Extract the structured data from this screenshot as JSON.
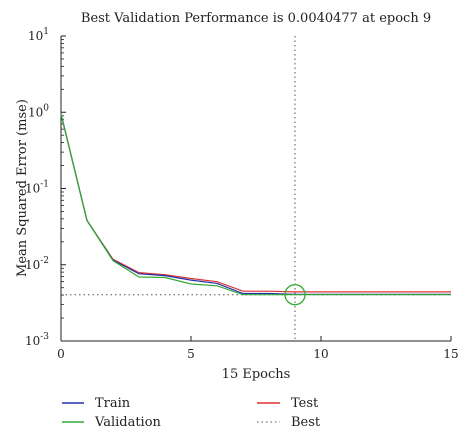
{
  "chart_data": {
    "type": "line",
    "title": "Best Validation Performance is 0.0040477 at epoch 9",
    "xlabel": "15 Epochs",
    "ylabel": "Mean Squared Error (mse)",
    "xlim": [
      0,
      15
    ],
    "ylim": [
      0.001,
      10
    ],
    "yscale": "log",
    "xticks": [
      0,
      5,
      10,
      15
    ],
    "xtick_labels": [
      "0",
      "5",
      "10",
      "15"
    ],
    "yticks": [
      0.001,
      0.01,
      0.1,
      1,
      10
    ],
    "ytick_bases": [
      "10",
      "10",
      "10",
      "10",
      "10"
    ],
    "ytick_exps": [
      "-3",
      "-2",
      "-1",
      "0",
      "1"
    ],
    "grid": false,
    "legend_position": "bottom",
    "x": [
      0,
      1,
      2,
      3,
      4,
      5,
      6,
      7,
      8,
      9,
      10,
      11,
      12,
      13,
      14,
      15
    ],
    "series": [
      {
        "name": "Train",
        "color": "#2233aa",
        "values": [
          0.95,
          0.038,
          0.0115,
          0.0076,
          0.0072,
          0.0063,
          0.0057,
          0.0042,
          0.0042,
          0.0041,
          0.0041,
          0.0041,
          0.0041,
          0.0041,
          0.0041,
          0.0041
        ]
      },
      {
        "name": "Validation",
        "color": "#33aa33",
        "values": [
          0.95,
          0.038,
          0.0113,
          0.0069,
          0.0068,
          0.0056,
          0.0053,
          0.00405,
          0.00405,
          0.00405,
          0.00405,
          0.00405,
          0.00405,
          0.00405,
          0.00405,
          0.00405
        ]
      },
      {
        "name": "Test",
        "color": "#dd3333",
        "values": [
          0.95,
          0.038,
          0.0118,
          0.0079,
          0.0074,
          0.0066,
          0.006,
          0.0045,
          0.0045,
          0.0044,
          0.0044,
          0.0044,
          0.0044,
          0.0044,
          0.0044,
          0.0044
        ]
      }
    ],
    "best": {
      "name": "Best",
      "epoch": 9,
      "value": 0.0040477,
      "color": "#555555"
    }
  }
}
